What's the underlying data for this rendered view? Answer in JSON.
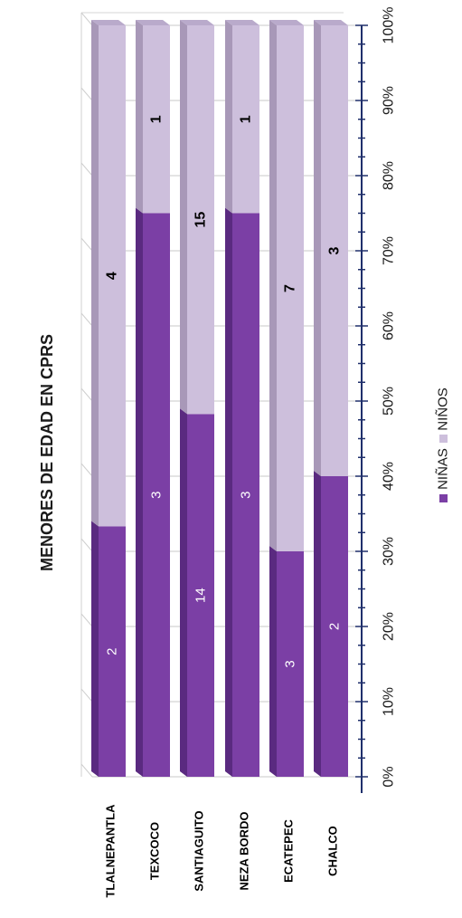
{
  "chart_data": {
    "type": "bar",
    "stacked": "percent",
    "title": "Menores de edad en CPRS",
    "categories": [
      "TLALNEPANTLA",
      "TEXCOCO",
      "SANTIAGUITO",
      "NEZA BORDO",
      "ECATEPEC",
      "CHALCO"
    ],
    "series": [
      {
        "name": "NIÑAS",
        "values": [
          2,
          3,
          14,
          3,
          3,
          2
        ],
        "color": "#7b3fa5"
      },
      {
        "name": "NIÑOS",
        "values": [
          4,
          1,
          15,
          1,
          7,
          3
        ],
        "color": "#cdbfdc"
      }
    ],
    "ticks": [
      "0%",
      "10%",
      "20%",
      "30%",
      "40%",
      "50%",
      "60%",
      "70%",
      "80%",
      "90%",
      "100%"
    ],
    "ylim": [
      0,
      100
    ],
    "grid": true,
    "legend_position": "bottom",
    "orientation": "rotated-90"
  }
}
